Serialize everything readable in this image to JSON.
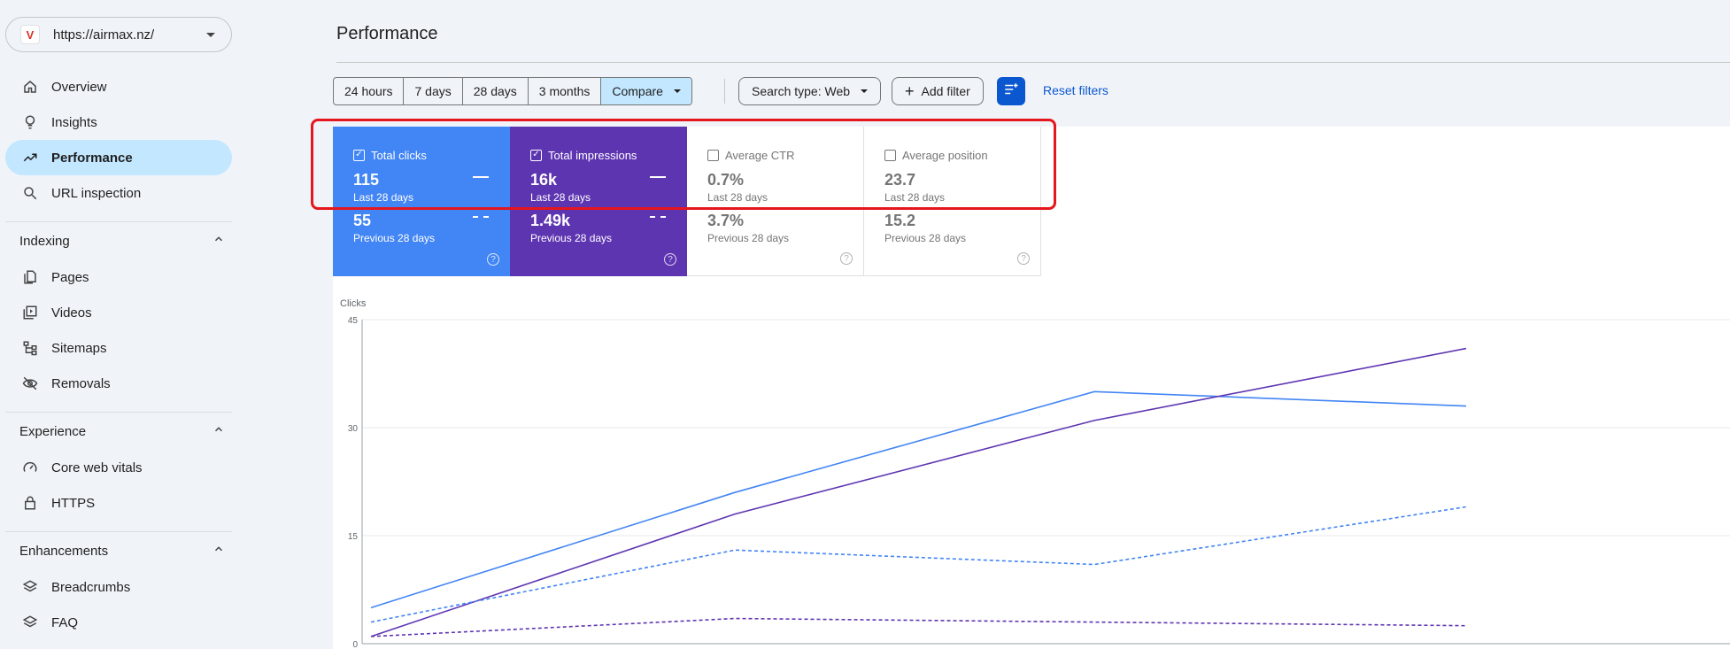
{
  "property": {
    "url": "https://airmax.nz/",
    "logo_letter": "V"
  },
  "sidebar": {
    "items": [
      {
        "label": "Overview",
        "icon": "home-icon"
      },
      {
        "label": "Insights",
        "icon": "lightbulb-icon"
      },
      {
        "label": "Performance",
        "icon": "trending-up-icon",
        "active": true
      },
      {
        "label": "URL inspection",
        "icon": "search-icon"
      }
    ],
    "indexing": {
      "title": "Indexing",
      "items": [
        {
          "label": "Pages",
          "icon": "pages-icon"
        },
        {
          "label": "Videos",
          "icon": "video-icon"
        },
        {
          "label": "Sitemaps",
          "icon": "sitemap-icon"
        },
        {
          "label": "Removals",
          "icon": "eye-off-icon"
        }
      ]
    },
    "experience": {
      "title": "Experience",
      "items": [
        {
          "label": "Core web vitals",
          "icon": "speedometer-icon"
        },
        {
          "label": "HTTPS",
          "icon": "lock-icon"
        }
      ]
    },
    "enhancements": {
      "title": "Enhancements",
      "items": [
        {
          "label": "Breadcrumbs",
          "icon": "layers-icon"
        },
        {
          "label": "FAQ",
          "icon": "layers-icon"
        }
      ]
    }
  },
  "header": {
    "title": "Performance"
  },
  "toolbar": {
    "ranges": [
      "24 hours",
      "7 days",
      "28 days",
      "3 months"
    ],
    "compare_label": "Compare",
    "search_type_label": "Search type: Web",
    "add_filter_label": "Add filter",
    "reset_label": "Reset filters"
  },
  "metrics": [
    {
      "label": "Total clicks",
      "value": "115",
      "period": "Last 28 days",
      "prev_value": "55",
      "prev_period": "Previous 28 days",
      "checked": true,
      "color": "#4285f4"
    },
    {
      "label": "Total impressions",
      "value": "16k",
      "period": "Last 28 days",
      "prev_value": "1.49k",
      "prev_period": "Previous 28 days",
      "checked": true,
      "color": "#5e35b1"
    },
    {
      "label": "Average CTR",
      "value": "0.7%",
      "period": "Last 28 days",
      "prev_value": "3.7%",
      "prev_period": "Previous 28 days",
      "checked": false
    },
    {
      "label": "Average position",
      "value": "23.7",
      "period": "Last 28 days",
      "prev_value": "15.2",
      "prev_period": "Previous 28 days",
      "checked": false
    }
  ],
  "chart_data": {
    "type": "line",
    "ylabel": "Clicks",
    "ylim": [
      0,
      45
    ],
    "yticks": [
      0,
      15,
      30,
      45
    ],
    "x": [
      0,
      1,
      2,
      3
    ],
    "series": [
      {
        "values": [
          5,
          21,
          35,
          33
        ],
        "color": "#4285f4",
        "dashed": false
      },
      {
        "values": [
          1,
          18,
          31,
          41
        ],
        "color": "#5e35b1",
        "dashed": false
      },
      {
        "values": [
          3,
          13,
          11,
          19
        ],
        "color": "#4285f4",
        "dashed": true
      },
      {
        "values": [
          1,
          3.5,
          3,
          2.5
        ],
        "color": "#5e35b1",
        "dashed": true
      }
    ],
    "grid": true,
    "legend": "none"
  }
}
